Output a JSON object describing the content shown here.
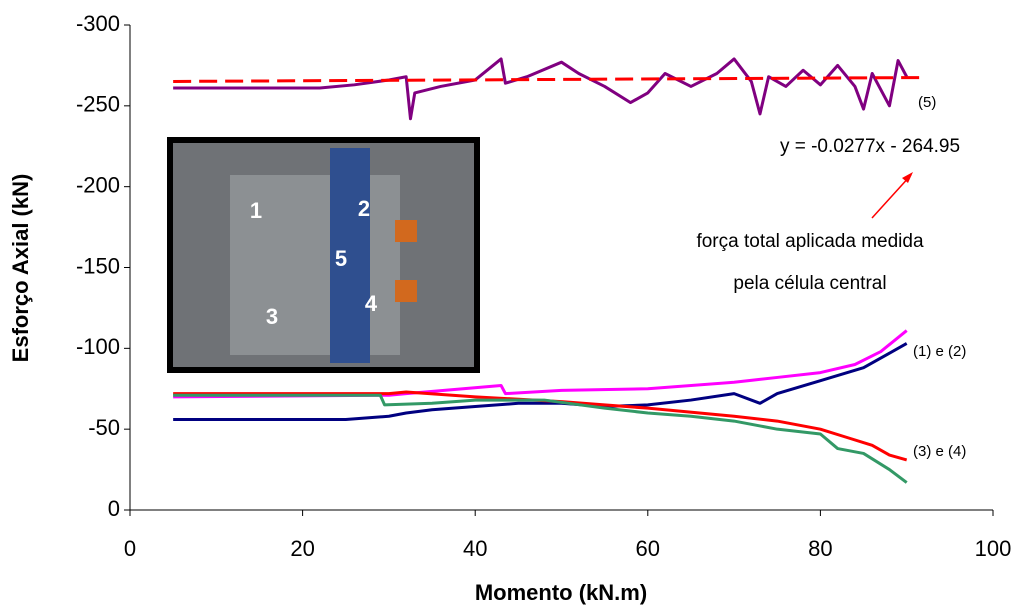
{
  "chart_data": {
    "type": "line",
    "x_label": "Momento (kN.m)",
    "y_label": "Esforço Axial (kN)",
    "xlim": [
      0,
      100
    ],
    "xticks": [
      0,
      20,
      40,
      60,
      80,
      100
    ],
    "ylim": [
      0,
      -300
    ],
    "yticks": [
      0,
      -50,
      -100,
      -150,
      -200,
      -250,
      -300
    ],
    "series": [
      {
        "color": "#800080",
        "dash": false,
        "x": [
          5,
          22,
          26,
          30,
          32,
          32.5,
          33,
          36,
          40,
          43,
          43.5,
          46,
          50,
          52,
          55,
          58,
          60,
          62,
          65,
          68,
          70,
          72,
          73,
          74,
          76,
          78,
          80,
          82,
          84,
          85,
          86,
          88,
          89,
          90
        ],
        "values": [
          -261,
          -261,
          -263,
          -266,
          -268,
          -242,
          -258,
          -262,
          -266,
          -279,
          -264,
          -268,
          -277,
          -270,
          -262,
          -252,
          -258,
          -270,
          -262,
          -270,
          -279,
          -265,
          -245,
          -268,
          -262,
          -272,
          -263,
          -275,
          -262,
          -248,
          -270,
          -250,
          -278,
          -268
        ]
      },
      {
        "color": "#ff0000",
        "dash": true,
        "x": [
          5,
          92
        ],
        "values": [
          -265.09,
          -267.5
        ]
      },
      {
        "color": "#ff00ff",
        "dash": false,
        "x": [
          5,
          30,
          32,
          43,
          43.5,
          50,
          60,
          70,
          75,
          80,
          84,
          87,
          90
        ],
        "values": [
          -70,
          -71,
          -72,
          -77,
          -72,
          -74,
          -75,
          -79,
          -82,
          -85,
          -90,
          -98,
          -111
        ]
      },
      {
        "color": "#000080",
        "dash": false,
        "x": [
          5,
          25,
          30,
          32,
          35,
          40,
          45,
          50,
          55,
          60,
          65,
          70,
          73,
          75,
          80,
          85,
          88,
          90
        ],
        "values": [
          -56,
          -56,
          -58,
          -60,
          -62,
          -64,
          -66,
          -66,
          -64,
          -65,
          -68,
          -72,
          -66,
          -72,
          -80,
          -88,
          -97,
          -103
        ]
      },
      {
        "color": "#ff0000",
        "dash": false,
        "x": [
          5,
          30,
          32,
          40,
          50,
          60,
          70,
          75,
          80,
          83,
          86,
          88,
          90
        ],
        "values": [
          -72,
          -72,
          -73,
          -70,
          -67,
          -63,
          -58,
          -55,
          -50,
          -45,
          -40,
          -34,
          -31
        ]
      },
      {
        "color": "#339966",
        "dash": false,
        "x": [
          5,
          29,
          29.5,
          35,
          40,
          48,
          55,
          60,
          65,
          70,
          75,
          80,
          82,
          85,
          88,
          90
        ],
        "values": [
          -71,
          -71,
          -65,
          -66,
          -68,
          -68,
          -63,
          -60,
          -58,
          -55,
          -50,
          -47,
          -38,
          -35,
          -25,
          -17
        ]
      }
    ],
    "annotations": [
      "(5)",
      "y = -0.0277x - 264.95",
      "força total aplicada medida",
      "pela célula central",
      "(1) e (2)",
      "(3) e (4)"
    ],
    "photo_labels": [
      "1",
      "2",
      "5",
      "3",
      "4"
    ]
  }
}
